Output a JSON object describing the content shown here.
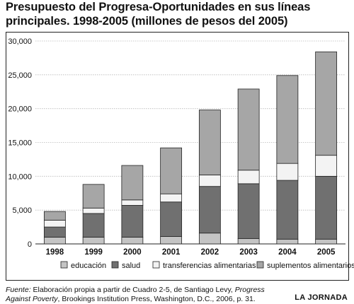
{
  "title_lines": [
    "Presupuesto del Progresa-Oportunidades en sus líneas",
    "principales. 1998-2005 (millones de pesos del 2005)"
  ],
  "chart_data": {
    "type": "bar",
    "stacked": true,
    "categories": [
      "1998",
      "1999",
      "2000",
      "2001",
      "2002",
      "2003",
      "2004",
      "2005"
    ],
    "series": [
      {
        "name": "educación",
        "color": "#c4c4c4",
        "values": [
          1000,
          1000,
          1000,
          1100,
          1600,
          800,
          700,
          700
        ]
      },
      {
        "name": "salud",
        "color": "#707070",
        "values": [
          1500,
          3500,
          4700,
          5100,
          6900,
          8100,
          8700,
          9300
        ]
      },
      {
        "name": "transferencias alimentarias",
        "color": "#f3f3f3",
        "values": [
          1000,
          800,
          800,
          1200,
          1700,
          2000,
          2500,
          3100
        ]
      },
      {
        "name": "suplementos alimentarios",
        "color": "#a6a6a6",
        "values": [
          1300,
          3500,
          5100,
          6800,
          9600,
          12000,
          13000,
          15300
        ]
      }
    ],
    "yticks": [
      "0",
      "5,000",
      "10,000",
      "15,000",
      "20,000",
      "25,000",
      "30,000"
    ],
    "ylim": [
      0,
      30000
    ],
    "grid": true,
    "legend_position": "bottom"
  },
  "footer": {
    "fuente_label": "Fuente:",
    "text_before_title": " Elaboración propia a partir de Cuadro 2-5, de Santiago Levy, ",
    "book_title": "Progress Against Poverty",
    "text_after_title": ", Brookings Institution Press, Washington, D.C., 2006, p. 31."
  },
  "credit": "LA JORNADA"
}
